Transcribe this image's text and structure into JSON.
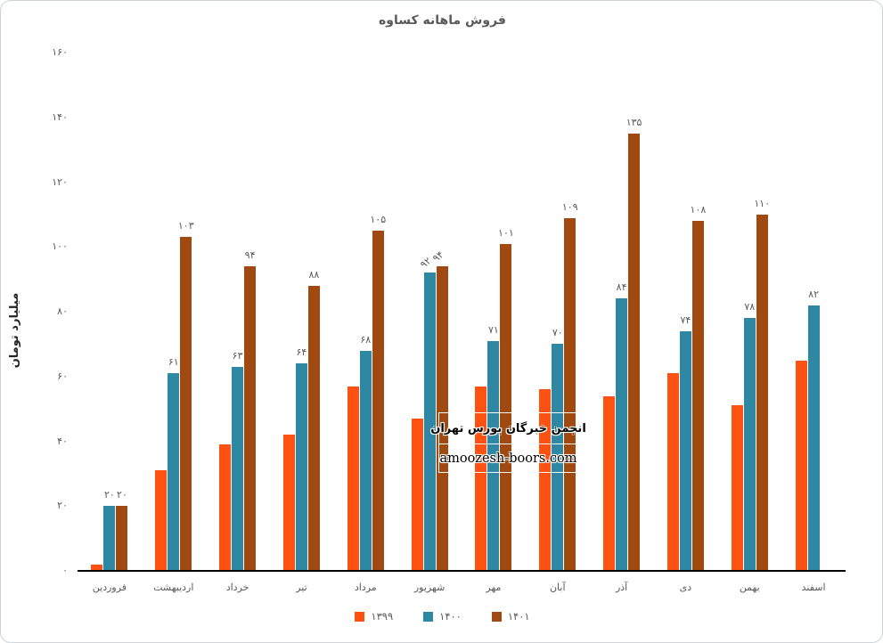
{
  "watermark": {
    "line1": "انجمن خبرگان بورس تهران",
    "line2": "amoozesh-boors.com"
  },
  "y_axis": {
    "ticks": [
      {
        "value": 160,
        "label": "۱۶۰"
      },
      {
        "value": 140,
        "label": "۱۴۰"
      },
      {
        "value": 120,
        "label": "۱۲۰"
      },
      {
        "value": 100,
        "label": "۱۰۰"
      },
      {
        "value": 80,
        "label": "۸۰"
      },
      {
        "value": 60,
        "label": "۶۰"
      },
      {
        "value": 40,
        "label": "۴۰"
      },
      {
        "value": 20,
        "label": "۲۰"
      },
      {
        "value": 0,
        "label": "۰"
      }
    ]
  },
  "chart_data": {
    "type": "bar",
    "title": "فروش ماهانه کساوه",
    "xlabel": "",
    "ylabel": "میلیارد تومان",
    "ylim": [
      0,
      160
    ],
    "grid": false,
    "legend_position": "bottom",
    "categories": [
      "فروردین",
      "اردیبهشت",
      "خرداد",
      "تیر",
      "مرداد",
      "شهریور",
      "مهر",
      "آبان",
      "آذر",
      "دی",
      "بهمن",
      "اسفند"
    ],
    "series": [
      {
        "key": "1399",
        "name": "۱۳۹۹",
        "color": "#FF5112",
        "values": [
          2,
          31,
          39,
          42,
          57,
          47,
          57,
          56,
          54,
          61,
          51,
          65
        ],
        "labels": [
          null,
          null,
          null,
          null,
          null,
          null,
          null,
          null,
          null,
          null,
          null,
          null
        ],
        "rotated_labels": []
      },
      {
        "key": "1400",
        "name": "۱۴۰۰",
        "color": "#2E87A3",
        "values": [
          20,
          61,
          63,
          64,
          68,
          92,
          71,
          70,
          84,
          74,
          78,
          82
        ],
        "labels": [
          "۲۰",
          "۶۱",
          "۶۳",
          "۶۴",
          "۶۸",
          "۹۲",
          "۷۱",
          "۷۰",
          "۸۴",
          "۷۴",
          "۷۸",
          "۸۲"
        ],
        "rotated_labels": [
          5
        ]
      },
      {
        "key": "1401",
        "name": "۱۴۰۱",
        "color": "#A04A11",
        "values": [
          20,
          103,
          94,
          88,
          105,
          94,
          101,
          109,
          135,
          108,
          110,
          null
        ],
        "labels": [
          "۲۰",
          "۱۰۳",
          "۹۴",
          "۸۸",
          "۱۰۵",
          "۹۴",
          "۱۰۱",
          "۱۰۹",
          "۱۳۵",
          "۱۰۸",
          "۱۱۰",
          null
        ],
        "rotated_labels": [
          5
        ]
      }
    ]
  }
}
